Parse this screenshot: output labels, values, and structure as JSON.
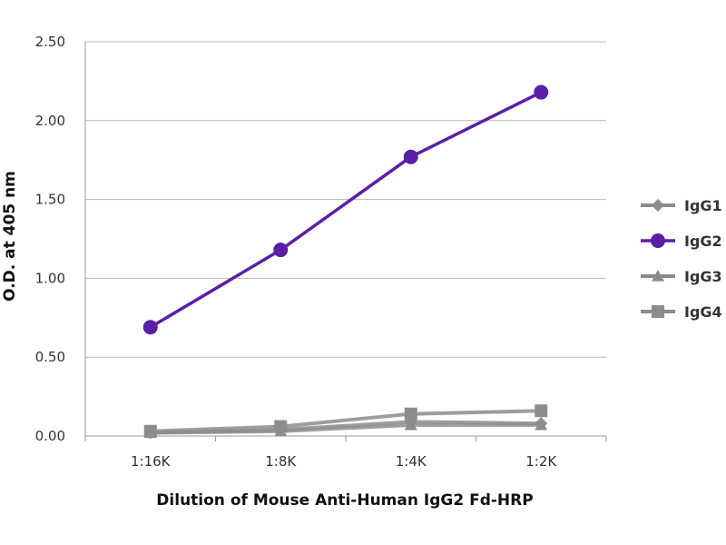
{
  "chart_data": {
    "type": "line",
    "xlabel": "Dilution of Mouse Anti-Human IgG2 Fd-HRP",
    "ylabel": "O.D. at 405 nm",
    "categories": [
      "1:16K",
      "1:8K",
      "1:4K",
      "1:2K"
    ],
    "ylim": [
      0,
      2.5
    ],
    "yticks": [
      "0.00",
      "0.50",
      "1.00",
      "1.50",
      "2.00",
      "2.50"
    ],
    "grid": true,
    "legend_position": "right",
    "series": [
      {
        "name": "IgG1",
        "values": [
          0.02,
          0.04,
          0.09,
          0.08
        ],
        "color": "#8c8c8c",
        "marker": "diamond"
      },
      {
        "name": "IgG2",
        "values": [
          0.69,
          1.18,
          1.77,
          2.18
        ],
        "color": "#5a1fa8",
        "marker": "circle"
      },
      {
        "name": "IgG3",
        "values": [
          0.02,
          0.03,
          0.07,
          0.07
        ],
        "color": "#8c8c8c",
        "marker": "triangle"
      },
      {
        "name": "IgG4",
        "values": [
          0.03,
          0.06,
          0.14,
          0.16
        ],
        "color": "#8c8c8c",
        "marker": "square"
      }
    ]
  }
}
